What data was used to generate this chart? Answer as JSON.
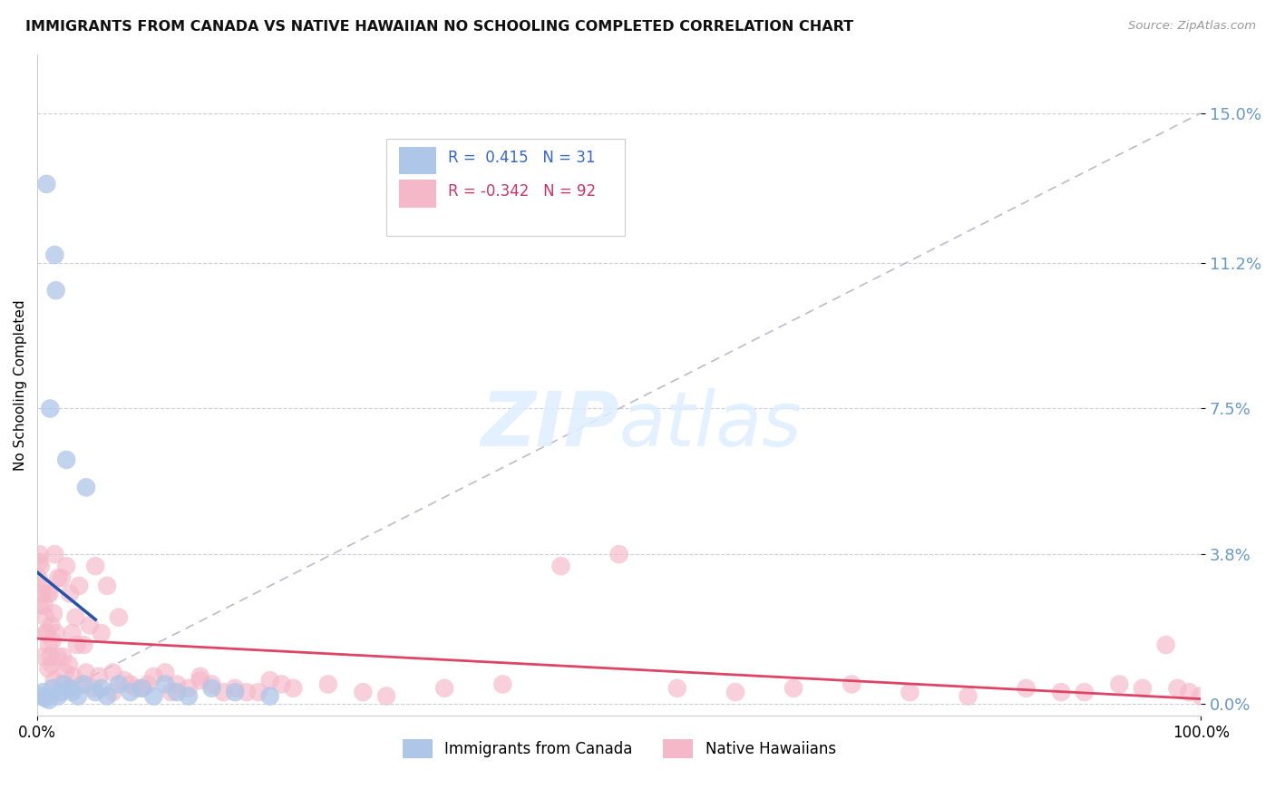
{
  "title": "IMMIGRANTS FROM CANADA VS NATIVE HAWAIIAN NO SCHOOLING COMPLETED CORRELATION CHART",
  "source": "Source: ZipAtlas.com",
  "ylabel": "No Schooling Completed",
  "ytick_vals": [
    0.0,
    3.8,
    7.5,
    11.2,
    15.0
  ],
  "xlim": [
    0.0,
    100.0
  ],
  "ylim": [
    -0.3,
    16.5
  ],
  "legend_r_blue": "0.415",
  "legend_n_blue": "31",
  "legend_r_pink": "-0.342",
  "legend_n_pink": "92",
  "blue_color": "#aec6e8",
  "pink_color": "#f5b8c8",
  "blue_line_color": "#2255aa",
  "pink_line_color": "#dd4466",
  "diag_line_color": "#bbbbcc",
  "background_color": "#ffffff",
  "grid_color": "#ccccdd",
  "blue_scatter_x": [
    0.3,
    0.5,
    0.7,
    0.8,
    1.0,
    1.1,
    1.3,
    1.5,
    1.6,
    1.8,
    2.0,
    2.3,
    2.5,
    2.8,
    3.0,
    3.5,
    4.0,
    4.2,
    5.0,
    5.5,
    6.0,
    7.0,
    8.0,
    9.0,
    10.0,
    11.0,
    12.0,
    13.0,
    15.0,
    17.0,
    20.0
  ],
  "blue_scatter_y": [
    0.2,
    0.3,
    0.15,
    13.2,
    0.1,
    7.5,
    0.4,
    11.4,
    10.5,
    0.2,
    0.3,
    0.5,
    6.2,
    0.4,
    0.3,
    0.2,
    0.5,
    5.5,
    0.3,
    0.4,
    0.2,
    0.5,
    0.3,
    0.4,
    0.2,
    0.5,
    0.3,
    0.2,
    0.4,
    0.3,
    0.2
  ],
  "pink_scatter_x": [
    0.1,
    0.2,
    0.3,
    0.4,
    0.5,
    0.6,
    0.7,
    0.8,
    0.9,
    1.0,
    1.1,
    1.2,
    1.3,
    1.4,
    1.5,
    1.6,
    1.8,
    2.0,
    2.2,
    2.5,
    2.8,
    3.0,
    3.3,
    3.6,
    4.0,
    4.5,
    5.0,
    5.5,
    6.0,
    6.5,
    7.0,
    8.0,
    9.0,
    10.0,
    11.0,
    12.0,
    13.0,
    14.0,
    15.0,
    16.0,
    18.0,
    20.0,
    22.0,
    25.0,
    28.0,
    30.0,
    35.0,
    40.0,
    45.0,
    50.0,
    55.0,
    60.0,
    65.0,
    70.0,
    75.0,
    80.0,
    85.0,
    88.0,
    90.0,
    93.0,
    95.0,
    97.0,
    98.0,
    99.0,
    100.0,
    0.15,
    0.25,
    0.55,
    0.75,
    0.95,
    1.05,
    1.25,
    1.45,
    1.75,
    2.1,
    2.4,
    2.7,
    3.1,
    3.4,
    3.8,
    4.2,
    4.8,
    5.3,
    6.5,
    7.5,
    8.5,
    9.5,
    11.5,
    14.0,
    17.0,
    19.0,
    21.0
  ],
  "pink_scatter_y": [
    3.2,
    3.8,
    3.5,
    2.8,
    3.0,
    2.5,
    2.2,
    1.8,
    2.8,
    1.5,
    1.2,
    2.0,
    1.6,
    2.3,
    3.8,
    1.8,
    3.2,
    0.5,
    1.2,
    3.5,
    2.8,
    1.8,
    2.2,
    3.0,
    1.5,
    2.0,
    3.5,
    1.8,
    3.0,
    0.8,
    2.2,
    0.5,
    0.4,
    0.7,
    0.8,
    0.5,
    0.4,
    0.6,
    0.5,
    0.3,
    0.3,
    0.6,
    0.4,
    0.5,
    0.3,
    0.2,
    0.4,
    0.5,
    3.5,
    3.8,
    0.4,
    0.3,
    0.4,
    0.5,
    0.3,
    0.2,
    0.4,
    0.3,
    0.3,
    0.5,
    0.4,
    1.5,
    0.4,
    0.3,
    0.2,
    3.6,
    2.5,
    1.2,
    1.8,
    0.9,
    2.8,
    1.0,
    0.6,
    1.2,
    3.2,
    0.8,
    1.0,
    0.7,
    1.5,
    0.5,
    0.8,
    0.4,
    0.7,
    0.3,
    0.6,
    0.4,
    0.5,
    0.3,
    0.7,
    0.4,
    0.3,
    0.5
  ]
}
